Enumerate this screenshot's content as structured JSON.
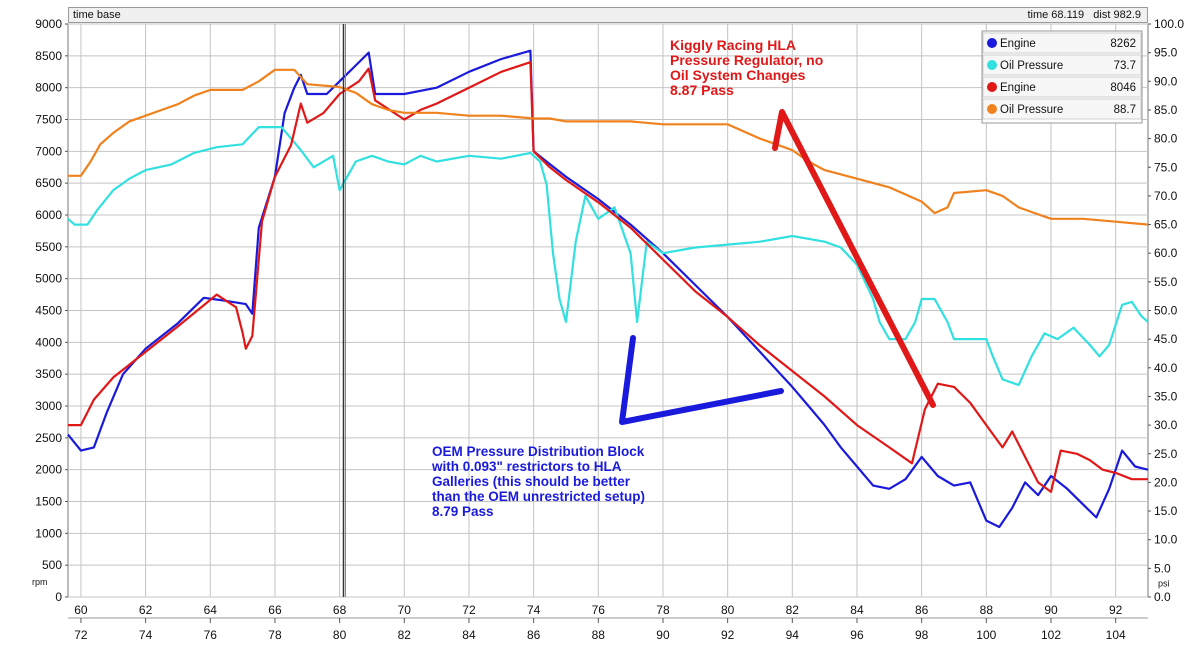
{
  "header": {
    "time_base_label": "time base",
    "readout_time_label": "time",
    "readout_time_value": "68.119",
    "readout_dist_label": "dist",
    "readout_dist_value": "982.9"
  },
  "chart_data": {
    "type": "line",
    "left_axis": {
      "unit": "rpm",
      "ylim": [
        0,
        9000
      ],
      "ticks": [
        0,
        500,
        1000,
        1500,
        2000,
        2500,
        3000,
        3500,
        4000,
        4500,
        5000,
        5500,
        6000,
        6500,
        7000,
        7500,
        8000,
        8500,
        9000
      ]
    },
    "right_axis": {
      "unit": "psi",
      "ylim": [
        0,
        100
      ],
      "ticks": [
        "0.0",
        "5.0",
        "10.0",
        "15.0",
        "20.0",
        "25.0",
        "30.0",
        "35.0",
        "40.0",
        "45.0",
        "50.0",
        "55.0",
        "60.0",
        "65.0",
        "70.0",
        "75.0",
        "80.0",
        "85.0",
        "90.0",
        "95.0",
        "100.0"
      ]
    },
    "x_axis_top": {
      "xlim": [
        59.6,
        93.0
      ],
      "ticks": [
        60,
        62,
        64,
        66,
        68,
        70,
        72,
        74,
        76,
        78,
        80,
        82,
        84,
        86,
        88,
        90,
        92
      ]
    },
    "x_axis_bottom": {
      "xlim": [
        71.6,
        105.0
      ],
      "ticks": [
        72,
        74,
        76,
        78,
        80,
        82,
        84,
        86,
        88,
        90,
        92,
        94,
        96,
        98,
        100,
        102,
        104
      ]
    },
    "cursor_x": 68.12,
    "grid": true,
    "legend_position": "top-right",
    "legend": [
      {
        "name": "Engine",
        "value": "8262",
        "color": "#1a1adc"
      },
      {
        "name": "Oil Pressure",
        "value": "73.7",
        "color": "#33e0e0"
      },
      {
        "name": "Engine",
        "value": "8046",
        "color": "#e01818"
      },
      {
        "name": "Oil Pressure",
        "value": "88.7",
        "color": "#f0821e"
      }
    ],
    "series": [
      {
        "name": "Engine",
        "color": "#1a1adc",
        "axis": "left",
        "x_axis": "top",
        "points": [
          [
            59.6,
            2550
          ],
          [
            60,
            2300
          ],
          [
            60.4,
            2350
          ],
          [
            60.8,
            2900
          ],
          [
            61.3,
            3500
          ],
          [
            62,
            3900
          ],
          [
            63,
            4300
          ],
          [
            63.8,
            4700
          ],
          [
            64.5,
            4650
          ],
          [
            65.1,
            4600
          ],
          [
            65.3,
            4450
          ],
          [
            65.5,
            5800
          ],
          [
            66,
            6600
          ],
          [
            66.3,
            7600
          ],
          [
            66.6,
            8000
          ],
          [
            66.8,
            8200
          ],
          [
            67,
            7900
          ],
          [
            67.6,
            7900
          ],
          [
            68,
            8100
          ],
          [
            68.5,
            8350
          ],
          [
            68.9,
            8550
          ],
          [
            69.1,
            7900
          ],
          [
            70,
            7900
          ],
          [
            71,
            8000
          ],
          [
            72,
            8250
          ],
          [
            73,
            8450
          ],
          [
            73.9,
            8580
          ],
          [
            74,
            7000
          ],
          [
            74.5,
            6800
          ],
          [
            75,
            6600
          ],
          [
            76,
            6250
          ],
          [
            77,
            5850
          ],
          [
            78,
            5400
          ],
          [
            79,
            4900
          ],
          [
            80,
            4400
          ],
          [
            81,
            3850
          ],
          [
            82,
            3300
          ],
          [
            82.5,
            3000
          ],
          [
            83,
            2700
          ],
          [
            83.5,
            2350
          ],
          [
            84,
            2050
          ],
          [
            84.5,
            1750
          ],
          [
            85,
            1700
          ],
          [
            85.5,
            1850
          ],
          [
            86,
            2200
          ],
          [
            86.5,
            1900
          ],
          [
            87,
            1750
          ],
          [
            87.5,
            1800
          ],
          [
            88,
            1200
          ],
          [
            88.4,
            1100
          ],
          [
            88.8,
            1400
          ],
          [
            89.2,
            1800
          ],
          [
            89.6,
            1600
          ],
          [
            90,
            1900
          ],
          [
            90.5,
            1700
          ],
          [
            91,
            1450
          ],
          [
            91.4,
            1250
          ],
          [
            91.8,
            1700
          ],
          [
            92.2,
            2300
          ],
          [
            92.6,
            2050
          ],
          [
            93,
            2000
          ]
        ]
      },
      {
        "name": "Oil Pressure",
        "color": "#33e0e0",
        "axis": "right",
        "x_axis": "top",
        "points": [
          [
            59.6,
            66
          ],
          [
            59.8,
            65
          ],
          [
            60.2,
            65
          ],
          [
            60.5,
            67.5
          ],
          [
            61,
            71
          ],
          [
            61.5,
            73
          ],
          [
            62,
            74.5
          ],
          [
            62.8,
            75.5
          ],
          [
            63.5,
            77.5
          ],
          [
            64.2,
            78.5
          ],
          [
            65,
            79
          ],
          [
            65.5,
            82
          ],
          [
            66.2,
            82
          ],
          [
            66.5,
            80
          ],
          [
            66.8,
            78
          ],
          [
            67.2,
            75
          ],
          [
            67.8,
            77
          ],
          [
            68,
            71
          ],
          [
            68.5,
            76
          ],
          [
            69,
            77
          ],
          [
            69.5,
            76
          ],
          [
            70,
            75.5
          ],
          [
            70.5,
            77
          ],
          [
            71,
            76
          ],
          [
            72,
            77
          ],
          [
            73,
            76.5
          ],
          [
            73.9,
            77.5
          ],
          [
            74.2,
            76
          ],
          [
            74.4,
            72
          ],
          [
            74.6,
            60
          ],
          [
            74.8,
            52
          ],
          [
            75,
            48
          ],
          [
            75.3,
            62
          ],
          [
            75.6,
            70
          ],
          [
            76,
            66
          ],
          [
            76.5,
            68
          ],
          [
            77,
            60
          ],
          [
            77.2,
            48
          ],
          [
            77.5,
            62
          ],
          [
            78,
            60
          ],
          [
            79,
            61
          ],
          [
            80,
            61.5
          ],
          [
            81,
            62
          ],
          [
            82,
            63
          ],
          [
            83,
            62
          ],
          [
            83.5,
            61
          ],
          [
            84,
            58
          ],
          [
            84.5,
            52
          ],
          [
            84.7,
            48
          ],
          [
            85,
            45
          ],
          [
            85.5,
            45
          ],
          [
            85.8,
            48
          ],
          [
            86,
            52
          ],
          [
            86.4,
            52
          ],
          [
            86.8,
            48
          ],
          [
            87,
            45
          ],
          [
            88,
            45
          ],
          [
            88.2,
            42
          ],
          [
            88.5,
            38
          ],
          [
            89,
            37
          ],
          [
            89.4,
            42
          ],
          [
            89.8,
            46
          ],
          [
            90.2,
            45
          ],
          [
            90.7,
            47
          ],
          [
            91.2,
            44
          ],
          [
            91.5,
            42
          ],
          [
            91.8,
            44
          ],
          [
            92.2,
            51
          ],
          [
            92.5,
            51.5
          ],
          [
            92.8,
            49
          ],
          [
            93,
            48
          ]
        ]
      },
      {
        "name": "Engine",
        "color": "#e01818",
        "axis": "left",
        "x_axis": "top",
        "points": [
          [
            59.6,
            2700
          ],
          [
            60,
            2700
          ],
          [
            60.4,
            3100
          ],
          [
            61,
            3450
          ],
          [
            62,
            3850
          ],
          [
            63,
            4250
          ],
          [
            63.6,
            4500
          ],
          [
            64.2,
            4750
          ],
          [
            64.8,
            4550
          ],
          [
            65,
            4150
          ],
          [
            65.1,
            3900
          ],
          [
            65.3,
            4100
          ],
          [
            65.6,
            5900
          ],
          [
            66,
            6600
          ],
          [
            66.5,
            7100
          ],
          [
            66.8,
            7750
          ],
          [
            67,
            7450
          ],
          [
            67.5,
            7600
          ],
          [
            68,
            7900
          ],
          [
            68.6,
            8100
          ],
          [
            68.9,
            8300
          ],
          [
            69.1,
            7800
          ],
          [
            70,
            7500
          ],
          [
            70.5,
            7650
          ],
          [
            71,
            7750
          ],
          [
            72,
            8000
          ],
          [
            73,
            8250
          ],
          [
            73.9,
            8400
          ],
          [
            74,
            7000
          ],
          [
            74.5,
            6750
          ],
          [
            75,
            6550
          ],
          [
            76,
            6200
          ],
          [
            77,
            5800
          ],
          [
            78,
            5300
          ],
          [
            79,
            4800
          ],
          [
            80,
            4400
          ],
          [
            81,
            3950
          ],
          [
            82,
            3550
          ],
          [
            83,
            3150
          ],
          [
            84,
            2700
          ],
          [
            85,
            2350
          ],
          [
            85.7,
            2100
          ],
          [
            86.1,
            2950
          ],
          [
            86.5,
            3350
          ],
          [
            87,
            3300
          ],
          [
            87.5,
            3050
          ],
          [
            88,
            2700
          ],
          [
            88.5,
            2350
          ],
          [
            88.8,
            2600
          ],
          [
            89.2,
            2200
          ],
          [
            89.6,
            1800
          ],
          [
            90,
            1650
          ],
          [
            90.3,
            2300
          ],
          [
            90.8,
            2250
          ],
          [
            91.2,
            2150
          ],
          [
            91.6,
            2000
          ],
          [
            92,
            1950
          ],
          [
            92.5,
            1850
          ],
          [
            93,
            1850
          ]
        ]
      },
      {
        "name": "Oil Pressure",
        "color": "#f0821e",
        "axis": "right",
        "x_axis": "top",
        "points": [
          [
            59.6,
            73.5
          ],
          [
            60,
            73.5
          ],
          [
            60.3,
            76
          ],
          [
            60.6,
            79
          ],
          [
            61,
            81
          ],
          [
            61.5,
            83
          ],
          [
            62,
            84
          ],
          [
            62.5,
            85
          ],
          [
            63,
            86
          ],
          [
            63.5,
            87.5
          ],
          [
            64,
            88.5
          ],
          [
            65,
            88.5
          ],
          [
            65.5,
            90
          ],
          [
            66,
            92
          ],
          [
            66.6,
            92
          ],
          [
            67,
            89.5
          ],
          [
            68,
            89
          ],
          [
            68.5,
            88
          ],
          [
            69,
            86
          ],
          [
            69.5,
            85
          ],
          [
            70,
            84.5
          ],
          [
            71,
            84.5
          ],
          [
            72,
            84
          ],
          [
            73,
            84
          ],
          [
            74,
            83.5
          ],
          [
            74.5,
            83.5
          ],
          [
            75,
            83
          ],
          [
            76,
            83
          ],
          [
            77,
            83
          ],
          [
            78,
            82.5
          ],
          [
            79,
            82.5
          ],
          [
            80,
            82.5
          ],
          [
            81,
            80
          ],
          [
            81.5,
            79
          ],
          [
            82,
            78
          ],
          [
            82.5,
            76
          ],
          [
            83,
            74.5
          ],
          [
            84,
            73
          ],
          [
            85,
            71.5
          ],
          [
            85.6,
            70
          ],
          [
            86,
            69
          ],
          [
            86.4,
            67
          ],
          [
            86.8,
            68
          ],
          [
            87,
            70.5
          ],
          [
            88,
            71
          ],
          [
            88.5,
            70
          ],
          [
            89,
            68
          ],
          [
            89.5,
            67
          ],
          [
            90,
            66
          ],
          [
            91,
            66
          ],
          [
            92,
            65.5
          ],
          [
            93,
            65
          ]
        ]
      }
    ],
    "annotations": [
      {
        "lines": [
          "Kiggly Racing HLA",
          "Pressure Regulator, no",
          "Oil System Changes",
          "8.87 Pass"
        ],
        "color": "#e01818"
      },
      {
        "lines": [
          "OEM Pressure Distribution Block",
          "with 0.093\" restrictors to HLA",
          "Galleries (this should be better",
          "than the OEM unrestricted setup)",
          "8.79 Pass"
        ],
        "color": "#1a1adc"
      }
    ]
  }
}
